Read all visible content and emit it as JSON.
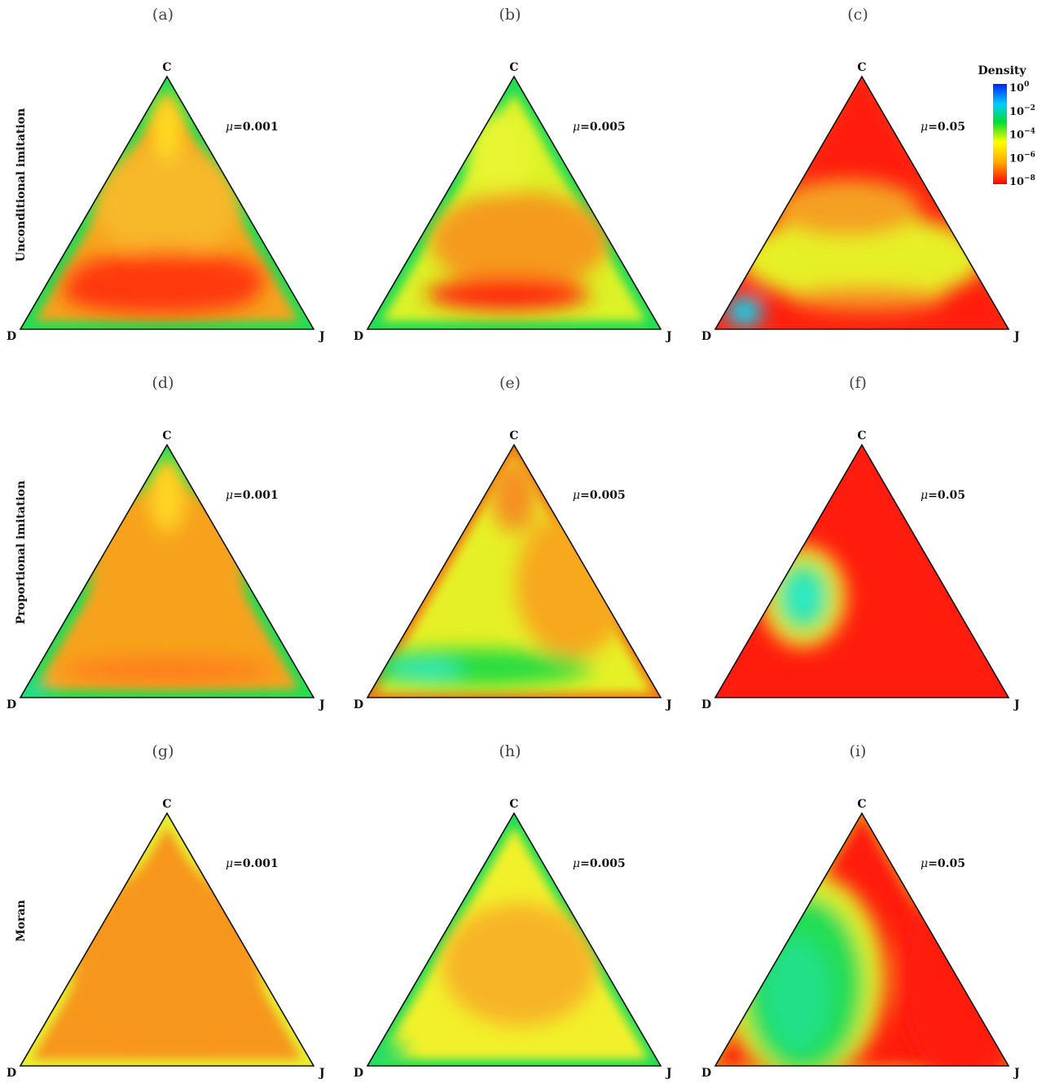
{
  "chart_data": {
    "type": "heatmap",
    "description_kind": "ternary simplex density plots",
    "vertex_labels": {
      "top": "C",
      "left": "D",
      "right": "J"
    },
    "columns": [
      {
        "mu_symbol": "μ",
        "mu_value": "=0.001"
      },
      {
        "mu_symbol": "μ",
        "mu_value": "=0.005"
      },
      {
        "mu_symbol": "μ",
        "mu_value": "=0.05"
      }
    ],
    "rows": [
      {
        "label": "Unconditional imitation"
      },
      {
        "label": "Proportional imitation"
      },
      {
        "label": "Moran"
      }
    ],
    "panel_labels": [
      "(a)",
      "(b)",
      "(c)",
      "(d)",
      "(e)",
      "(f)",
      "(g)",
      "(h)",
      "(i)"
    ],
    "colorbar": {
      "title": "Density",
      "scale": "log",
      "ticks": [
        {
          "base": "10",
          "exp": "0"
        },
        {
          "base": "10",
          "exp": "−2"
        },
        {
          "base": "10",
          "exp": "−4"
        },
        {
          "base": "10",
          "exp": "−6"
        },
        {
          "base": "10",
          "exp": "−8"
        }
      ],
      "colors": [
        "#0000ff",
        "#00e5ff",
        "#00d030",
        "#ffff00",
        "#ffa500",
        "#ff0000"
      ]
    }
  }
}
